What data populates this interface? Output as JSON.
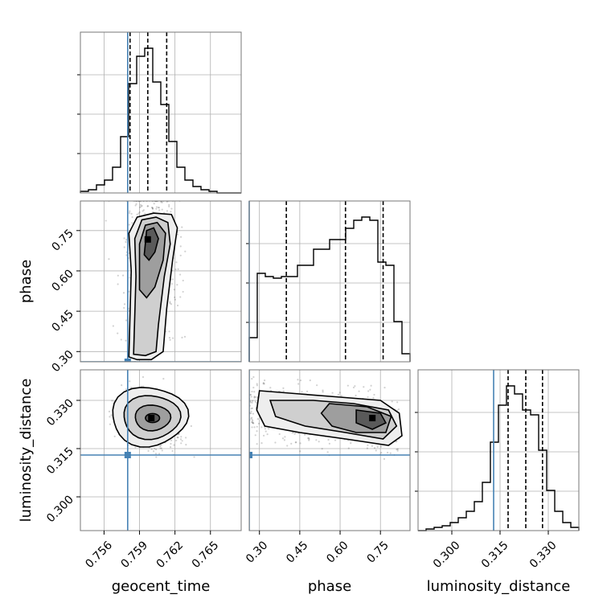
{
  "chart_data": {
    "type": "corner",
    "grid": true,
    "parameters": [
      "geocent_time",
      "phase",
      "luminosity_distance"
    ],
    "ranges": {
      "geocent_time": [
        0.754,
        0.7676
      ],
      "phase": [
        0.262,
        0.86
      ],
      "luminosity_distance": [
        0.2895,
        0.3395
      ]
    },
    "ticks": {
      "geocent_time": [
        0.756,
        0.759,
        0.762,
        0.765
      ],
      "phase": [
        0.3,
        0.45,
        0.6,
        0.75
      ],
      "luminosity_distance": [
        0.3,
        0.315,
        0.33
      ]
    },
    "tick_labels": {
      "geocent_time": [
        "0.756",
        "0.759",
        "0.762",
        "0.765"
      ],
      "phase": [
        "0.30",
        "0.45",
        "0.60",
        "0.75"
      ],
      "luminosity_distance": [
        "0.300",
        "0.315",
        "0.330"
      ]
    },
    "truths": {
      "geocent_time": 0.758,
      "phase": 0.262,
      "luminosity_distance": 0.313
    },
    "quantiles": {
      "geocent_time": [
        0.7582,
        0.7597,
        0.7613
      ],
      "phase": [
        0.4,
        0.62,
        0.76
      ],
      "luminosity_distance": [
        0.3175,
        0.323,
        0.3282
      ]
    },
    "peaks": {
      "geocent_time_vs_phase": [
        0.7597,
        0.717
      ],
      "geocent_time_vs_luminosity_distance": [
        0.76,
        0.3245
      ],
      "phase_vs_luminosity_distance": [
        0.72,
        0.3245
      ]
    },
    "histograms": {
      "geocent_time": {
        "edges_range": [
          0.754,
          0.7676
        ],
        "counts": [
          0.01,
          0.02,
          0.05,
          0.08,
          0.16,
          0.35,
          0.68,
          0.85,
          0.9,
          0.69,
          0.55,
          0.32,
          0.16,
          0.08,
          0.04,
          0.02,
          0.01,
          0,
          0,
          0
        ]
      },
      "phase": {
        "edges_range": [
          0.262,
          0.86
        ],
        "counts": [
          0.15,
          0.55,
          0.53,
          0.52,
          0.53,
          0.53,
          0.6,
          0.6,
          0.7,
          0.7,
          0.76,
          0.76,
          0.83,
          0.88,
          0.9,
          0.88,
          0.62,
          0.6,
          0.25,
          0.05
        ]
      },
      "luminosity_distance": {
        "edges_range": [
          0.2895,
          0.3395
        ],
        "counts": [
          0,
          0.01,
          0.02,
          0.03,
          0.05,
          0.08,
          0.12,
          0.18,
          0.3,
          0.55,
          0.78,
          0.9,
          0.85,
          0.75,
          0.72,
          0.5,
          0.25,
          0.12,
          0.05,
          0.02
        ]
      }
    },
    "colors": {
      "truth": "#4682b4",
      "hist": "#000000",
      "grid": "#b0b0b0"
    }
  }
}
